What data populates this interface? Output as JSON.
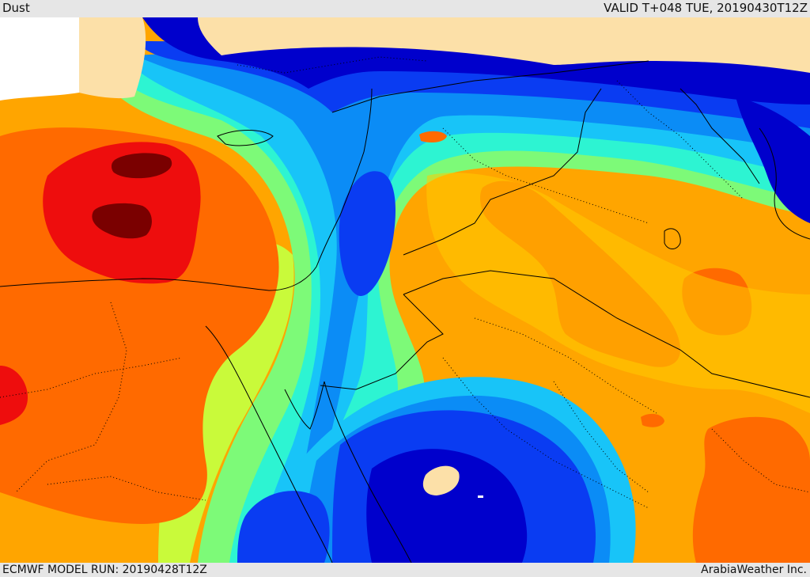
{
  "header": {
    "title": "Dust",
    "valid": "VALID T+048 TUE, 20190430T12Z"
  },
  "footer": {
    "model_run": "ECMWF MODEL RUN: 20190428T12Z",
    "credit": "ArabiaWeather Inc."
  },
  "palette": {
    "land_no_data": "#fce0a8",
    "sea_white": "#ffffff",
    "navy": "#0000cc",
    "blue": "#0a3cf2",
    "mid_blue": "#0b8cf6",
    "sky": "#18c4f8",
    "aqua": "#2df4d2",
    "green": "#7dfa78",
    "yellow_green": "#c9fa3a",
    "yellow": "#ffcc00",
    "orange_light": "#ffa500",
    "orange": "#ff6a00",
    "red": "#ee0d0d",
    "maroon": "#7a0000"
  }
}
